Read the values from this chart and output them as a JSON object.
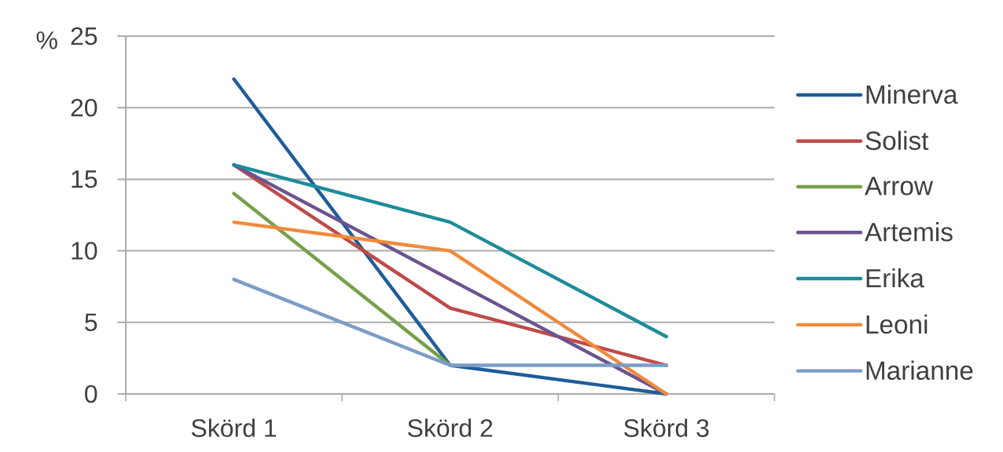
{
  "chart_data": {
    "type": "line",
    "ylabel": "%",
    "categories": [
      "Skörd 1",
      "Skörd 2",
      "Skörd 3"
    ],
    "series": [
      {
        "name": "Minerva",
        "color": "#1f5c99",
        "values": [
          22,
          2,
          0
        ]
      },
      {
        "name": "Solist",
        "color": "#be4b48",
        "values": [
          16,
          6,
          2
        ]
      },
      {
        "name": "Arrow",
        "color": "#77a04a",
        "values": [
          14,
          2,
          null
        ]
      },
      {
        "name": "Artemis",
        "color": "#6b548f",
        "values": [
          16,
          8,
          0
        ]
      },
      {
        "name": "Erika",
        "color": "#1d8c99",
        "values": [
          16,
          12,
          4
        ]
      },
      {
        "name": "Leoni",
        "color": "#f08a3c",
        "values": [
          12,
          10,
          0
        ]
      },
      {
        "name": "Marianne",
        "color": "#7d9cc6",
        "values": [
          8,
          2,
          2
        ]
      }
    ],
    "ylim": [
      0,
      25
    ],
    "yticks": [
      0,
      5,
      10,
      15,
      20,
      25
    ],
    "grid": "y",
    "legend": "right",
    "marker": "none",
    "line_style": "solid"
  }
}
